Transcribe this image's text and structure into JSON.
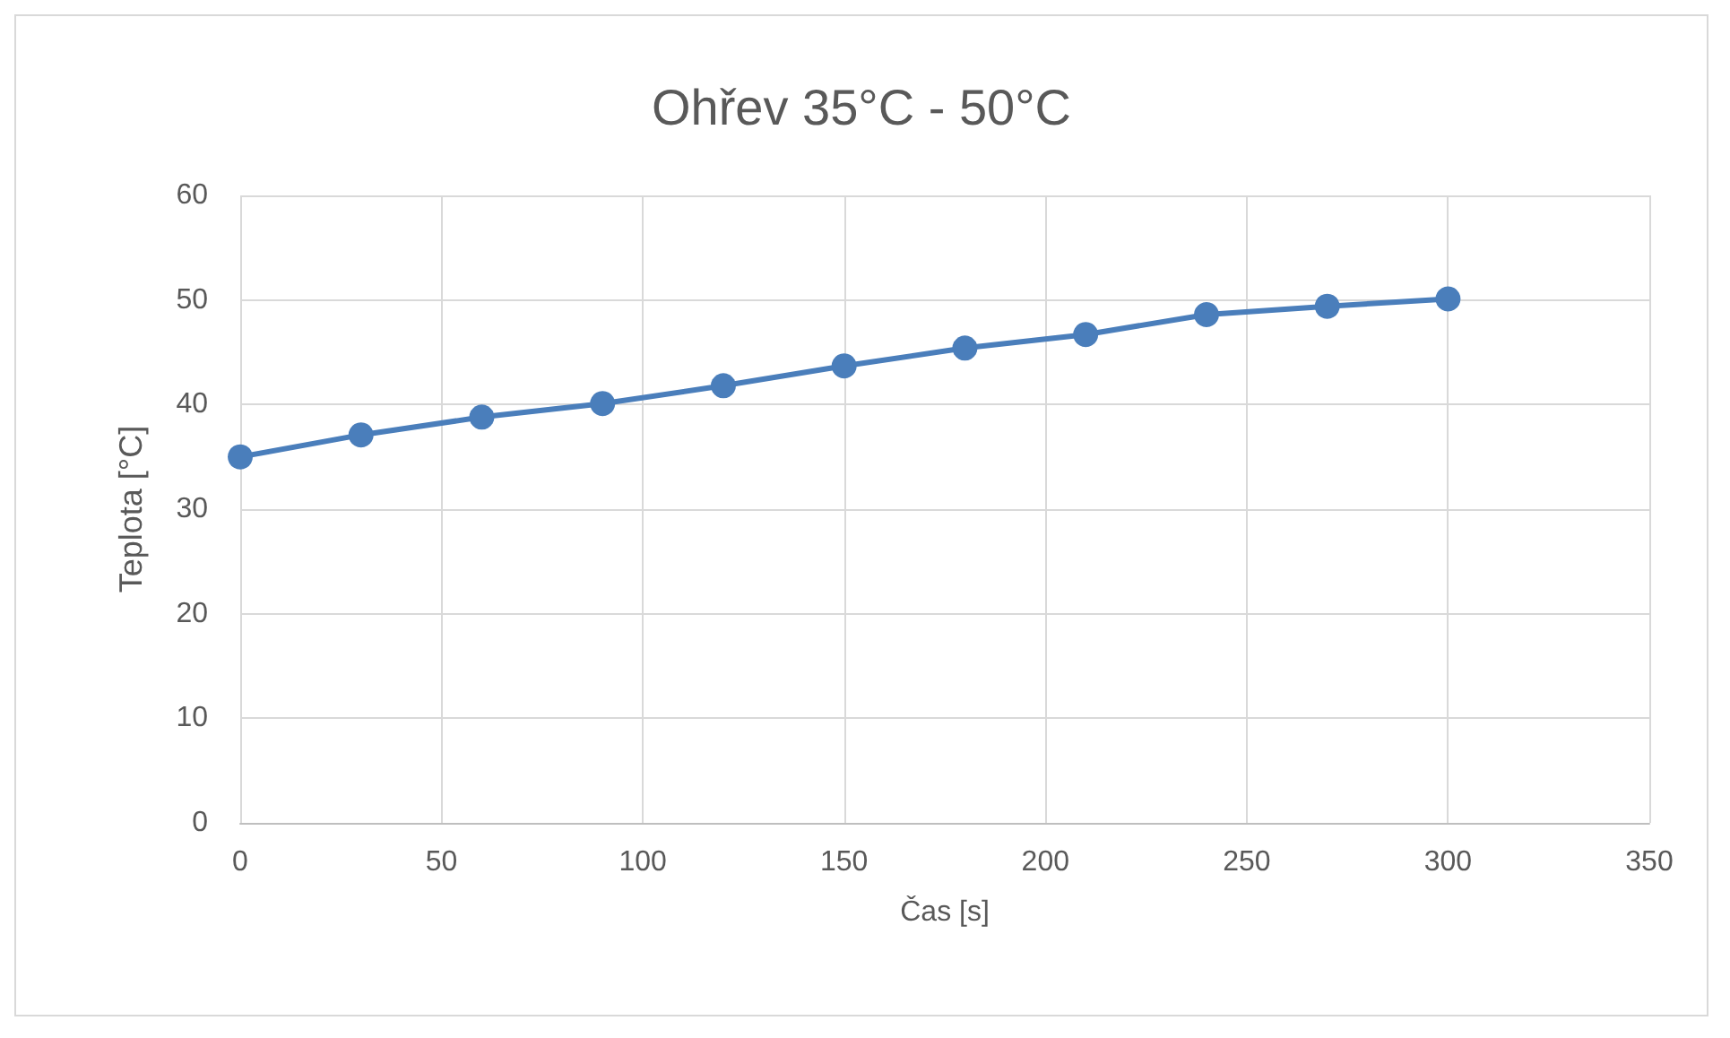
{
  "chart_data": {
    "type": "line",
    "title": "Ohřev 35°C - 50°C",
    "xlabel": "Čas [s]",
    "ylabel": "Teplota [°C]",
    "x": [
      0,
      30,
      60,
      90,
      120,
      150,
      180,
      210,
      240,
      270,
      300
    ],
    "series": [
      {
        "color": "#4a7ebb",
        "values": [
          35,
          37.1,
          38.8,
          40.1,
          41.8,
          43.7,
          45.4,
          46.7,
          48.6,
          49.4,
          50.1
        ]
      }
    ],
    "xlim": [
      0,
      350
    ],
    "xticks": [
      0,
      50,
      100,
      150,
      200,
      250,
      300,
      350
    ],
    "ylim": [
      0,
      60
    ],
    "yticks": [
      0,
      10,
      20,
      30,
      40,
      50,
      60
    ],
    "grid": true,
    "marker": "circle",
    "line_style": "solid"
  }
}
